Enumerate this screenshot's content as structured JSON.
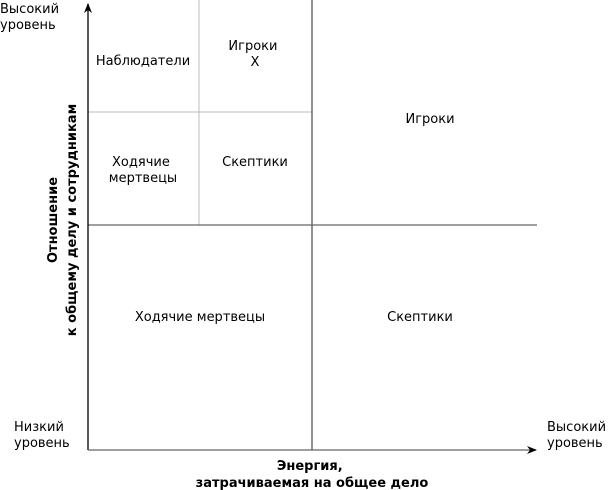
{
  "y_axis": {
    "high_label": [
      "Высокий",
      "уровень"
    ],
    "low_label": [
      "Низкий",
      "уровень"
    ],
    "title": [
      "Отношение",
      "к общему делу и сотрудникам"
    ]
  },
  "x_axis": {
    "high_label": [
      "Высокий",
      "уровень"
    ],
    "title": [
      "Энергия,",
      "затрачиваемая на общее дело"
    ]
  },
  "cells": {
    "top_left_top_left": "Наблюдатели",
    "top_left_top_right": [
      "Игроки",
      "X"
    ],
    "top_left_bottom_left": [
      "Ходячие",
      "мертвецы"
    ],
    "top_left_bottom_right": "Скептики",
    "top_right": "Игроки",
    "bottom_left": "Ходячие мертвецы",
    "bottom_right": "Скептики"
  }
}
